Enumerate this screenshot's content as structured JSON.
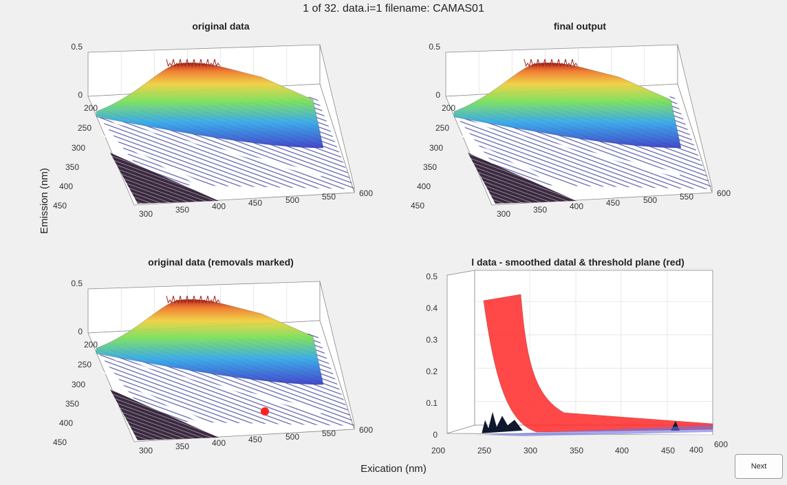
{
  "figure": {
    "suptitle": "1 of 32. data.i=1 filename: CAMAS01",
    "xlabel": "Exication (nm)",
    "ylabel": "Emission (nm)",
    "next_label": "Next"
  },
  "chart_data": [
    {
      "type": "surface",
      "title": "original data",
      "colormap": "jet",
      "x_ticks": [
        "300",
        "350",
        "400",
        "450",
        "500",
        "550",
        "600"
      ],
      "y_ticks": [
        "200",
        "250",
        "300",
        "350",
        "400",
        "450"
      ],
      "z_ticks": [
        "0",
        "0.5"
      ],
      "zlim": [
        0,
        0.5
      ],
      "grid": true
    },
    {
      "type": "surface",
      "title": "final output",
      "colormap": "jet",
      "x_ticks": [
        "300",
        "350",
        "400",
        "450",
        "500",
        "550",
        "600"
      ],
      "y_ticks": [
        "200",
        "250",
        "300",
        "350",
        "400",
        "450"
      ],
      "z_ticks": [
        "0",
        "0.5"
      ],
      "zlim": [
        0,
        0.5
      ],
      "grid": true
    },
    {
      "type": "surface",
      "title": "original data (removals marked)",
      "colormap": "jet",
      "x_ticks": [
        "300",
        "350",
        "400",
        "450",
        "500",
        "550",
        "600"
      ],
      "y_ticks": [
        "200",
        "250",
        "300",
        "350",
        "400",
        "450"
      ],
      "z_ticks": [
        "0",
        "0.5"
      ],
      "zlim": [
        0,
        0.5
      ],
      "removal_marker_color": "#ff2020",
      "grid": true
    },
    {
      "type": "surface",
      "title": "l data - smoothed datal & threshold plane (red)",
      "x_ticks": [
        "200",
        "250",
        "300",
        "350",
        "400",
        "450"
      ],
      "y_ticks": [
        "400",
        "600"
      ],
      "z_ticks": [
        "0",
        "0.1",
        "0.2",
        "0.3",
        "0.4",
        "0.5"
      ],
      "zlim": [
        0,
        0.5
      ],
      "threshold_color": "#ff2a2a",
      "grid": true
    }
  ]
}
